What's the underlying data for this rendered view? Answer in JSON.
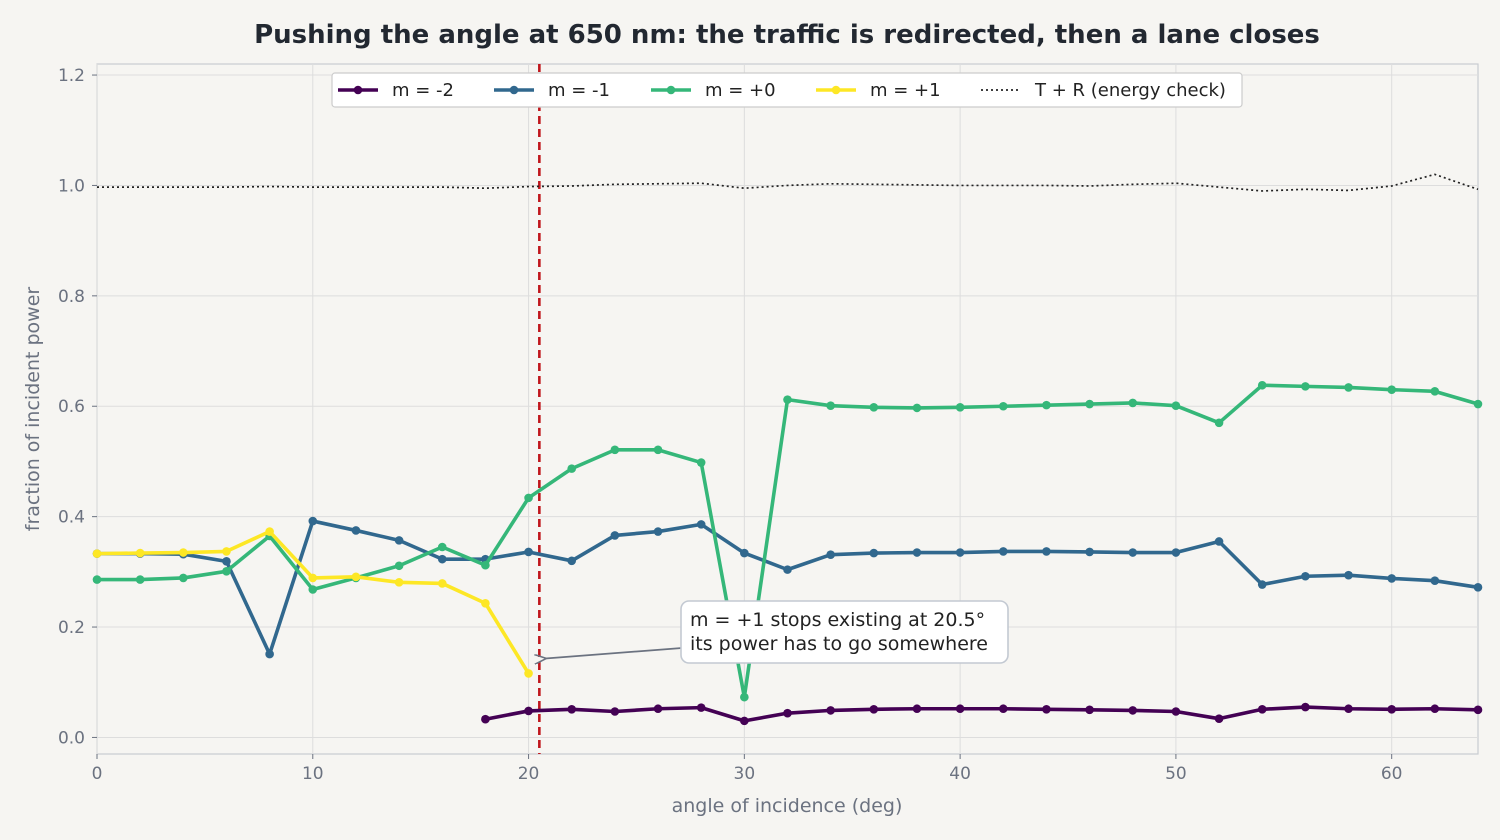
{
  "chart_data": {
    "type": "line",
    "title": "Pushing the angle at 650 nm: the traffic is redirected, then a lane closes",
    "xlabel": "angle of incidence  (deg)",
    "ylabel": "fraction of incident power",
    "xlim": [
      0,
      64
    ],
    "ylim": [
      -0.03,
      1.22
    ],
    "xticks": [
      0,
      10,
      20,
      30,
      40,
      50,
      60
    ],
    "yticks": [
      0.0,
      0.2,
      0.4,
      0.6,
      0.8,
      1.0,
      1.2
    ],
    "xtick_labels": [
      "0",
      "10",
      "20",
      "30",
      "40",
      "50",
      "60"
    ],
    "ytick_labels": [
      "0.0",
      "0.2",
      "0.4",
      "0.6",
      "0.8",
      "1.0",
      "1.2"
    ],
    "grid": true,
    "legend_position": "top-center",
    "series": [
      {
        "name": "m = -2",
        "color": "#440154",
        "x": [
          18,
          20,
          22,
          24,
          26,
          28,
          30,
          32,
          34,
          36,
          38,
          40,
          42,
          44,
          46,
          48,
          50,
          52,
          54,
          56,
          58,
          60,
          62,
          64
        ],
        "values": [
          0.033,
          0.048,
          0.051,
          0.047,
          0.052,
          0.054,
          0.03,
          0.044,
          0.049,
          0.051,
          0.052,
          0.052,
          0.052,
          0.051,
          0.05,
          0.049,
          0.047,
          0.034,
          0.051,
          0.055,
          0.052,
          0.051,
          0.052,
          0.05
        ]
      },
      {
        "name": "m = -1",
        "color": "#31688e",
        "x": [
          0,
          2,
          4,
          6,
          8,
          10,
          12,
          14,
          16,
          18,
          20,
          22,
          24,
          26,
          28,
          30,
          32,
          34,
          36,
          38,
          40,
          42,
          44,
          46,
          48,
          50,
          52,
          54,
          56,
          58,
          60,
          62,
          64
        ],
        "values": [
          0.333,
          0.333,
          0.332,
          0.319,
          0.151,
          0.392,
          0.375,
          0.357,
          0.323,
          0.323,
          0.336,
          0.32,
          0.366,
          0.373,
          0.386,
          0.334,
          0.304,
          0.331,
          0.334,
          0.335,
          0.335,
          0.337,
          0.337,
          0.336,
          0.335,
          0.335,
          0.355,
          0.277,
          0.292,
          0.294,
          0.288,
          0.284,
          0.272
        ]
      },
      {
        "name": "m = +0",
        "color": "#35b779",
        "x": [
          0,
          2,
          4,
          6,
          8,
          10,
          12,
          14,
          16,
          18,
          20,
          22,
          24,
          26,
          28,
          30,
          32,
          34,
          36,
          38,
          40,
          42,
          44,
          46,
          48,
          50,
          52,
          54,
          56,
          58,
          60,
          62,
          64
        ],
        "values": [
          0.286,
          0.286,
          0.289,
          0.301,
          0.365,
          0.268,
          0.289,
          0.311,
          0.345,
          0.312,
          0.434,
          0.487,
          0.521,
          0.521,
          0.498,
          0.073,
          0.612,
          0.601,
          0.598,
          0.597,
          0.598,
          0.6,
          0.602,
          0.604,
          0.606,
          0.601,
          0.57,
          0.638,
          0.636,
          0.634,
          0.63,
          0.627,
          0.604
        ]
      },
      {
        "name": "m = +1",
        "color": "#fde725",
        "x": [
          0,
          2,
          4,
          6,
          8,
          10,
          12,
          14,
          16,
          18,
          20
        ],
        "values": [
          0.333,
          0.334,
          0.335,
          0.337,
          0.373,
          0.289,
          0.291,
          0.281,
          0.279,
          0.243,
          0.116
        ]
      },
      {
        "name": "T + R (energy check)",
        "color": "#222222",
        "style": "dotted",
        "x": [
          0,
          2,
          4,
          6,
          8,
          10,
          12,
          14,
          16,
          18,
          20,
          22,
          24,
          26,
          28,
          30,
          32,
          34,
          36,
          38,
          40,
          42,
          44,
          46,
          48,
          50,
          52,
          54,
          56,
          58,
          60,
          62,
          64
        ],
        "values": [
          0.997,
          0.997,
          0.997,
          0.997,
          0.998,
          0.997,
          0.997,
          0.997,
          0.997,
          0.995,
          0.998,
          0.999,
          1.002,
          1.003,
          1.004,
          0.995,
          1.0,
          1.003,
          1.002,
          1.001,
          1.0,
          1.0,
          1.0,
          0.999,
          1.002,
          1.004,
          0.997,
          0.99,
          0.993,
          0.991,
          0.999,
          1.02,
          0.993
        ]
      }
    ],
    "reference_line": {
      "x": 20.5,
      "color": "#c0161c",
      "style": "dashed"
    },
    "annotation": {
      "lines": [
        "m = +1 stops existing at 20.5°",
        "its power has to go somewhere"
      ],
      "arrow_target": {
        "x": 20.5,
        "y": 0.143
      }
    }
  }
}
